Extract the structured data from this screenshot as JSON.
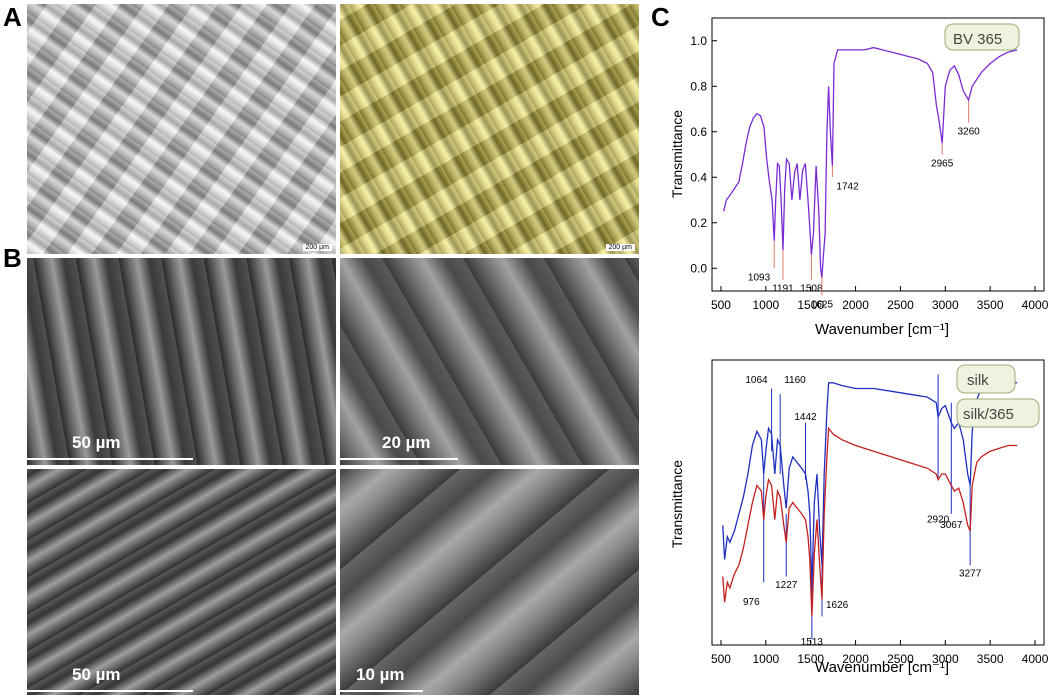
{
  "panels": {
    "A": {
      "letter": "A",
      "scale_left": "200 µm",
      "scale_right": "200 µm"
    },
    "B": {
      "letter": "B",
      "scale_labels": [
        "50 µm",
        "20 µm",
        "50 µm",
        "10 µm"
      ]
    },
    "C": {
      "letter": "C"
    }
  },
  "colors": {
    "bv365": "#7a2bd4",
    "silk": "#1f2fbf",
    "silk365": "#c42020",
    "peak_line": "#e07a6a"
  },
  "chart_data": [
    {
      "type": "line",
      "xlabel": "Wavenumber [cm⁻¹]",
      "ylabel": "Transmittance",
      "xlim": [
        400,
        4100
      ],
      "ylim": [
        -0.1,
        1.1
      ],
      "xticks": [
        "500",
        "1000",
        "1500",
        "2000",
        "2500",
        "3000",
        "3500",
        "4000"
      ],
      "yticks": [
        "0.0",
        "0.2",
        "0.4",
        "0.6",
        "0.8",
        "1.0"
      ],
      "series": [
        {
          "name": "BV 365",
          "x": [
            530,
            560,
            600,
            650,
            700,
            740,
            780,
            820,
            860,
            900,
            940,
            980,
            1010,
            1040,
            1070,
            1093,
            1110,
            1130,
            1150,
            1170,
            1191,
            1210,
            1230,
            1260,
            1290,
            1320,
            1350,
            1380,
            1410,
            1440,
            1470,
            1490,
            1508,
            1530,
            1560,
            1590,
            1610,
            1625,
            1640,
            1660,
            1680,
            1700,
            1720,
            1742,
            1760,
            1800,
            1900,
            2000,
            2100,
            2200,
            2300,
            2400,
            2500,
            2600,
            2700,
            2800,
            2860,
            2900,
            2930,
            2965,
            3000,
            3050,
            3100,
            3150,
            3200,
            3260,
            3300,
            3400,
            3500,
            3600,
            3700,
            3800
          ],
          "y": [
            0.25,
            0.3,
            0.32,
            0.35,
            0.38,
            0.46,
            0.55,
            0.62,
            0.66,
            0.68,
            0.67,
            0.62,
            0.48,
            0.38,
            0.3,
            0.12,
            0.3,
            0.46,
            0.45,
            0.3,
            0.08,
            0.35,
            0.48,
            0.46,
            0.3,
            0.42,
            0.46,
            0.3,
            0.43,
            0.46,
            0.3,
            0.18,
            0.06,
            0.15,
            0.45,
            0.25,
            0.0,
            -0.04,
            0.05,
            0.15,
            0.6,
            0.8,
            0.6,
            0.45,
            0.9,
            0.96,
            0.96,
            0.96,
            0.96,
            0.97,
            0.96,
            0.95,
            0.94,
            0.93,
            0.92,
            0.9,
            0.86,
            0.72,
            0.65,
            0.55,
            0.8,
            0.87,
            0.89,
            0.85,
            0.78,
            0.74,
            0.8,
            0.86,
            0.9,
            0.93,
            0.95,
            0.96
          ]
        },
        {
          "name": "",
          "peak_labels": [
            "1093",
            "1191",
            "1508",
            "1625",
            "1742",
            "2965",
            "3260"
          ]
        }
      ],
      "legend": "BV 365"
    },
    {
      "type": "line",
      "xlabel": "Wavenumber [cm⁻¹]",
      "ylabel": "Transmittance",
      "xlim": [
        400,
        4100
      ],
      "ylim": [
        0,
        1
      ],
      "xticks": [
        "500",
        "1000",
        "1500",
        "2000",
        "2500",
        "3000",
        "3500",
        "4000"
      ],
      "series": [
        {
          "name": "silk",
          "x": [
            520,
            540,
            570,
            600,
            650,
            700,
            750,
            800,
            850,
            900,
            950,
            976,
            1000,
            1030,
            1064,
            1100,
            1130,
            1160,
            1200,
            1227,
            1260,
            1300,
            1350,
            1400,
            1442,
            1470,
            1490,
            1513,
            1540,
            1570,
            1600,
            1626,
            1650,
            1680,
            1700,
            1750,
            1850,
            2000,
            2200,
            2400,
            2600,
            2800,
            2900,
            2920,
            2960,
            3000,
            3067,
            3100,
            3150,
            3200,
            3250,
            3277,
            3300,
            3350,
            3400,
            3500,
            3600,
            3700,
            3800
          ],
          "y": [
            0.42,
            0.3,
            0.38,
            0.36,
            0.4,
            0.46,
            0.52,
            0.6,
            0.7,
            0.75,
            0.72,
            0.6,
            0.68,
            0.76,
            0.74,
            0.6,
            0.72,
            0.7,
            0.56,
            0.48,
            0.62,
            0.66,
            0.64,
            0.62,
            0.6,
            0.54,
            0.46,
            0.2,
            0.5,
            0.6,
            0.4,
            0.28,
            0.6,
            0.82,
            0.92,
            0.92,
            0.91,
            0.9,
            0.9,
            0.89,
            0.88,
            0.87,
            0.85,
            0.8,
            0.83,
            0.84,
            0.78,
            0.76,
            0.78,
            0.72,
            0.6,
            0.56,
            0.75,
            0.86,
            0.9,
            0.91,
            0.92,
            0.92,
            0.92
          ]
        },
        {
          "name": "silk/365",
          "x": [
            520,
            540,
            570,
            600,
            650,
            700,
            750,
            800,
            850,
            900,
            950,
            976,
            1000,
            1030,
            1064,
            1100,
            1130,
            1160,
            1200,
            1227,
            1260,
            1300,
            1350,
            1400,
            1442,
            1470,
            1490,
            1513,
            1540,
            1570,
            1600,
            1626,
            1650,
            1680,
            1700,
            1750,
            1850,
            2000,
            2200,
            2400,
            2600,
            2800,
            2900,
            2920,
            2960,
            3000,
            3067,
            3100,
            3150,
            3200,
            3250,
            3277,
            3300,
            3350,
            3400,
            3500,
            3600,
            3700,
            3800
          ],
          "y": [
            0.24,
            0.15,
            0.22,
            0.2,
            0.25,
            0.28,
            0.34,
            0.42,
            0.5,
            0.56,
            0.54,
            0.44,
            0.52,
            0.58,
            0.56,
            0.44,
            0.54,
            0.52,
            0.42,
            0.36,
            0.48,
            0.5,
            0.48,
            0.46,
            0.44,
            0.38,
            0.3,
            0.1,
            0.32,
            0.44,
            0.28,
            0.16,
            0.46,
            0.66,
            0.76,
            0.74,
            0.72,
            0.7,
            0.68,
            0.66,
            0.64,
            0.62,
            0.6,
            0.58,
            0.6,
            0.6,
            0.56,
            0.54,
            0.55,
            0.5,
            0.42,
            0.4,
            0.56,
            0.64,
            0.66,
            0.68,
            0.69,
            0.7,
            0.7
          ]
        },
        {
          "name": "",
          "peak_labels": [
            "1064",
            "1160",
            "1442",
            "976",
            "1227",
            "1513",
            "1626",
            "2920",
            "3067",
            "3277"
          ]
        }
      ],
      "legend": [
        "silk",
        "silk/365"
      ]
    }
  ]
}
